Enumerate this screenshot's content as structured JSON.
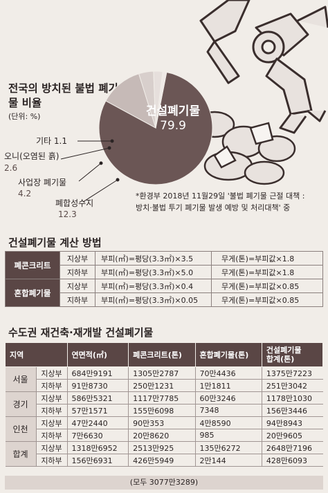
{
  "chart_data": {
    "type": "pie",
    "title": "전국의 방치된 불법 폐기물 비율",
    "unit": "(단위: %)",
    "slices": [
      {
        "label": "건설폐기물",
        "value": 79.9,
        "color": "#6b5655"
      },
      {
        "label": "폐합성수지",
        "value": 12.3,
        "color": "#c6bab7"
      },
      {
        "label": "사업장 폐기물",
        "value": 4.2,
        "color": "#d8cfcc"
      },
      {
        "label": "오니(오염된 흙)",
        "value": 2.6,
        "color": "#e6dfdc"
      },
      {
        "label": "기타",
        "value": 1.1,
        "color": "#efe9e6"
      }
    ]
  },
  "note": {
    "line1": "*환경부 2018년 11월29일 '불법 폐기물 근절 대책 :",
    "line2": "방치·불법 투기 폐기물 발생 예방 및 처리대책' 중"
  },
  "calc": {
    "title": "건설폐기물 계산 방법",
    "rows": [
      {
        "category": "폐콘크리트",
        "items": [
          {
            "pos": "지상부",
            "f1": "부피(㎥)=평당(3.3㎡)×3.5",
            "f2": "무게(톤)=부피값×1.8"
          },
          {
            "pos": "지하부",
            "f1": "부피(㎥)=평당(3.3㎡)×5.0",
            "f2": "무게(톤)=부피값×1.8"
          }
        ]
      },
      {
        "category": "혼합폐기물",
        "items": [
          {
            "pos": "지상부",
            "f1": "부피(㎥)=평당(3.3㎡)×0.4",
            "f2": "무게(톤)=부피값×0.85"
          },
          {
            "pos": "지하부",
            "f1": "부피(㎥)=평당(3.3㎡)×0.05",
            "f2": "무게(톤)=부피값×0.85"
          }
        ]
      }
    ]
  },
  "regions": {
    "title": "수도권 재건축·재개발 건설폐기물",
    "headers": [
      "지역",
      "연면적(㎡)",
      "폐콘크리트(톤)",
      "혼합폐기물(톤)",
      "건설폐기물",
      "합계(톤)"
    ],
    "rows": [
      {
        "region": "서울",
        "items": [
          {
            "pos": "지상부",
            "area": "684만9191",
            "concrete": "1305만2787",
            "mixed": "70만4436",
            "total": "1375만7223"
          },
          {
            "pos": "지하부",
            "area": "91만8730",
            "concrete": "250만1231",
            "mixed": "1만1811",
            "total": "251만3042"
          }
        ]
      },
      {
        "region": "경기",
        "items": [
          {
            "pos": "지상부",
            "area": "586만5321",
            "concrete": "1117만7785",
            "mixed": "60만3246",
            "total": "1178만1030"
          },
          {
            "pos": "지하부",
            "area": "57만1571",
            "concrete": "155만6098",
            "mixed": "7348",
            "total": "156만3446"
          }
        ]
      },
      {
        "region": "인천",
        "items": [
          {
            "pos": "지상부",
            "area": "47만2440",
            "concrete": "90만353",
            "mixed": "4만8590",
            "total": "94만8943"
          },
          {
            "pos": "지하부",
            "area": "7만6630",
            "concrete": "20만8620",
            "mixed": "985",
            "total": "20만9605"
          }
        ]
      },
      {
        "region": "합계",
        "items": [
          {
            "pos": "지상부",
            "area": "1318만6952",
            "concrete": "2513만925",
            "mixed": "135만6272",
            "total": "2648만7196"
          },
          {
            "pos": "지하부",
            "area": "156만6931",
            "concrete": "426만5949",
            "mixed": "2만144",
            "total": "428만6093"
          }
        ]
      }
    ],
    "total": "(모두 3077만3289)"
  }
}
